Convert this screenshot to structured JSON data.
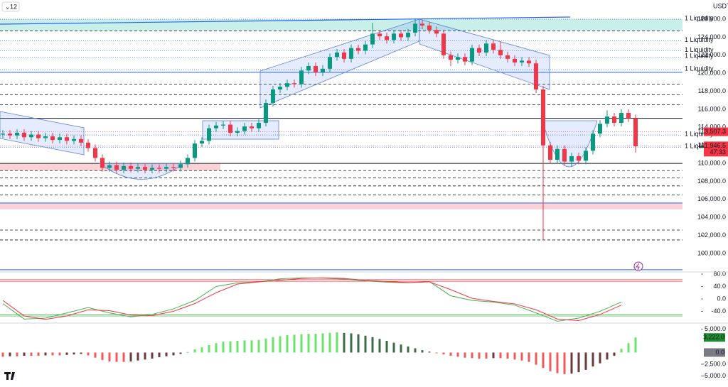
{
  "header": {
    "interval": "12",
    "currency": "USDT"
  },
  "chart_data": [
    {
      "type": "candlestick",
      "open": [
        113200,
        113300,
        113100,
        113400,
        112900,
        113200,
        112800,
        113000,
        112600,
        112900,
        112500,
        112700,
        112300,
        111700,
        110600,
        109500,
        109800,
        109300,
        109700,
        109400,
        109600,
        109300,
        109500,
        109400,
        109600,
        109500,
        109900,
        110600,
        112200,
        112500,
        113900,
        114200,
        114300,
        113400,
        113600,
        114100,
        113900,
        114500,
        116700,
        118200,
        118500,
        118900,
        118800,
        120300,
        120800,
        120100,
        120500,
        121800,
        122300,
        121600,
        122800,
        122500,
        123200,
        124400,
        124100,
        123700,
        124400,
        124000,
        124500,
        125500,
        125300,
        124800,
        124400,
        122000,
        121500,
        121800,
        121300,
        122800,
        122300,
        123300,
        122600,
        122000,
        121600,
        121200,
        121400,
        121100,
        118200,
        112000,
        110400,
        111600,
        110200,
        110800,
        110300,
        111400,
        113300,
        114400,
        115200,
        114500,
        115600,
        115000
      ],
      "high": [
        113700,
        113700,
        113800,
        113800,
        113600,
        113600,
        113400,
        113400,
        113300,
        113300,
        113100,
        113100,
        112700,
        112100,
        111000,
        110200,
        110200,
        110100,
        110100,
        110000,
        110000,
        109900,
        109900,
        110000,
        110000,
        110300,
        111000,
        112600,
        112900,
        114300,
        114600,
        114700,
        114700,
        114000,
        114500,
        114500,
        114900,
        117100,
        118600,
        118900,
        119300,
        119300,
        120700,
        121200,
        121200,
        120900,
        122200,
        122700,
        122700,
        123200,
        123200,
        123600,
        125600,
        124800,
        124500,
        124800,
        124800,
        124900,
        126100,
        125900,
        125700,
        125200,
        124800,
        122400,
        122200,
        122200,
        123200,
        123200,
        123700,
        123700,
        123500,
        122400,
        122000,
        121800,
        121800,
        121500,
        118600,
        112400,
        112000,
        112000,
        111200,
        111200,
        111800,
        113700,
        114800,
        115900,
        115600,
        116000,
        116000,
        115400
      ],
      "low": [
        112800,
        112700,
        112700,
        112500,
        112500,
        112400,
        112400,
        112200,
        112200,
        112100,
        112100,
        111900,
        111300,
        110200,
        109100,
        109100,
        108900,
        108900,
        109000,
        109000,
        108900,
        108900,
        109000,
        109000,
        109100,
        109100,
        109500,
        110200,
        111800,
        112100,
        113500,
        113800,
        113000,
        113000,
        113200,
        113500,
        113500,
        114100,
        116300,
        117800,
        118100,
        118400,
        118400,
        119900,
        119700,
        119700,
        120100,
        121400,
        121200,
        121200,
        122100,
        122100,
        122800,
        123700,
        123300,
        123300,
        123600,
        123600,
        124100,
        124900,
        124400,
        124000,
        121600,
        120800,
        121100,
        120900,
        120900,
        121900,
        121900,
        122200,
        121600,
        121200,
        120800,
        120800,
        120700,
        117800,
        101500,
        110000,
        110000,
        109800,
        109600,
        109900,
        109900,
        111000,
        112900,
        114000,
        114100,
        114100,
        114600,
        111200
      ],
      "close": [
        113300,
        113100,
        113400,
        112900,
        113200,
        112800,
        113000,
        112600,
        112900,
        112500,
        112700,
        112300,
        111700,
        110600,
        109500,
        109800,
        109300,
        109700,
        109400,
        109600,
        109300,
        109500,
        109400,
        109600,
        109500,
        109900,
        110600,
        112200,
        112500,
        113900,
        114200,
        114300,
        113400,
        113600,
        114100,
        113900,
        114500,
        116700,
        118200,
        118500,
        118900,
        118800,
        120300,
        120800,
        120100,
        120500,
        121800,
        122300,
        121600,
        122800,
        122500,
        123200,
        124400,
        124100,
        123700,
        124400,
        124000,
        124500,
        125500,
        125300,
        124800,
        124400,
        122000,
        121500,
        121800,
        121300,
        122800,
        122300,
        123300,
        122600,
        122000,
        121600,
        121200,
        121400,
        121100,
        118200,
        112000,
        110400,
        111600,
        110200,
        110800,
        110300,
        111400,
        113300,
        114400,
        115200,
        114500,
        115600,
        115000,
        111900
      ],
      "up_color": "#089981",
      "down_color": "#f23645",
      "ylim": [
        97950,
        128130
      ],
      "yticks": [
        {
          "value": 100000,
          "label": "100,000.0"
        },
        {
          "value": 102000,
          "label": "102,000.0"
        },
        {
          "value": 104000,
          "label": "104,000.0"
        },
        {
          "value": 106000,
          "label": "106,000.0"
        },
        {
          "value": 108000,
          "label": "108,000.0"
        },
        {
          "value": 110000,
          "label": "110,000.0"
        },
        {
          "value": 112000,
          "label": "112,000.0"
        },
        {
          "value": 114000,
          "label": "114,000.0"
        },
        {
          "value": 116000,
          "label": "116,000.0"
        },
        {
          "value": 118000,
          "label": "118,000.0"
        },
        {
          "value": 120000,
          "label": "120,000.0"
        },
        {
          "value": 122000,
          "label": "122,000.0"
        },
        {
          "value": 124000,
          "label": "124,000.0"
        },
        {
          "value": 126000,
          "label": "126,000.0"
        }
      ],
      "zones": [
        {
          "range": [
            124700,
            126000
          ],
          "color": "#c8f0e8"
        },
        {
          "range": [
            109200,
            110000
          ],
          "color": "#fbd3d6"
        },
        {
          "range": [
            104900,
            105600
          ],
          "color": "#fbd3d6"
        }
      ],
      "solid_levels": [
        115000,
        110000
      ],
      "blue_levels": [
        120100,
        105600,
        98200
      ],
      "dashed_levels": [
        124700,
        118800,
        117600,
        116500,
        109200,
        108400,
        107500,
        106500,
        102600,
        101500
      ],
      "liquidity": [
        {
          "value": 126000,
          "label": "1 Liquidity"
        },
        {
          "value": 123600,
          "label": "1 Liquidity"
        },
        {
          "value": 122500,
          "label": "1 Liquidity"
        },
        {
          "value": 121800,
          "label": "1 Liquidity"
        },
        {
          "value": 120400,
          "label": "1 Liquidity"
        },
        {
          "value": 113150,
          "label": "1 Liquidity"
        },
        {
          "value": 111800,
          "label": "1 Liquidity"
        }
      ],
      "price_labels": [
        {
          "value": 113507.3,
          "label": "113,507.3",
          "color": "#f23645"
        },
        {
          "value": 111946.5,
          "label": "111,946.5",
          "color": "#f23645"
        }
      ],
      "countdown": "47:33"
    },
    {
      "type": "line",
      "series": [
        {
          "color": "#4caf50",
          "values": [
            -15,
            -65,
            -62,
            -45,
            -28,
            -45,
            -58,
            -50,
            -32,
            -5,
            40,
            52,
            55,
            65,
            68,
            67,
            64,
            58,
            54,
            52,
            56,
            10,
            -5,
            -10,
            -20,
            -45,
            -72,
            -62,
            -40,
            -10
          ]
        },
        {
          "color": "#f23645",
          "values": [
            -5,
            -55,
            -66,
            -55,
            -35,
            -38,
            -52,
            -54,
            -40,
            -15,
            20,
            48,
            55,
            60,
            66,
            68,
            66,
            60,
            56,
            53,
            55,
            30,
            2,
            -8,
            -16,
            -35,
            -65,
            -70,
            -50,
            -20
          ]
        }
      ],
      "bands": [
        {
          "value": 62,
          "color": "#f23645"
        },
        {
          "value": 57,
          "color": "#f23645"
        },
        {
          "value": -50,
          "color": "#4caf50"
        },
        {
          "value": -55,
          "color": "#4caf50"
        }
      ],
      "ylim": [
        -78,
        87
      ],
      "yticks": [
        {
          "value": 80,
          "label": "80.0"
        },
        {
          "value": 40,
          "label": "40.0"
        },
        {
          "value": 0,
          "label": "0.0"
        },
        {
          "value": -40,
          "label": "-40.0"
        }
      ]
    },
    {
      "type": "bar",
      "values": [
        -900,
        -800,
        -800,
        -700,
        -700,
        -700,
        -600,
        -600,
        -600,
        -500,
        -400,
        -300,
        -600,
        -1100,
        -1600,
        -1900,
        -2000,
        -2000,
        -1900,
        -1700,
        -1500,
        -1300,
        -1000,
        -800,
        -600,
        -300,
        100,
        700,
        1100,
        1600,
        2000,
        2300,
        2400,
        2500,
        2600,
        2600,
        2700,
        3000,
        3300,
        3500,
        3700,
        3800,
        3900,
        4000,
        4000,
        4100,
        4200,
        4300,
        4200,
        4100,
        3900,
        3600,
        3300,
        2900,
        2500,
        2100,
        1700,
        1300,
        900,
        500,
        200,
        -100,
        -400,
        -700,
        -900,
        -1100,
        -1200,
        -1300,
        -1300,
        -1200,
        -1200,
        -1300,
        -1500,
        -1700,
        -2000,
        -2600,
        -3300,
        -4000,
        -4400,
        -4600,
        -4500,
        -4200,
        -3700,
        -3000,
        -2300,
        -1500,
        -700,
        800,
        2000,
        3222
      ],
      "colors": {
        "pos_up": "#69e36b",
        "pos_down": "#3d6b45",
        "neg_down": "#f05a5a",
        "neg_up": "#6b3a3a"
      },
      "ylim": [
        -7360,
        6290
      ],
      "yticks": [
        {
          "value": 5000,
          "label": "5,000.0"
        },
        {
          "value": -2500,
          "label": "-2,500.0"
        },
        {
          "value": -5000,
          "label": "-5,000.0"
        }
      ],
      "axis_labels": [
        {
          "value": 3222,
          "label": "3,222.0",
          "color": "#1e8c2f"
        },
        {
          "value": 0,
          "label": "0.0",
          "color": "#787b86"
        }
      ]
    }
  ]
}
